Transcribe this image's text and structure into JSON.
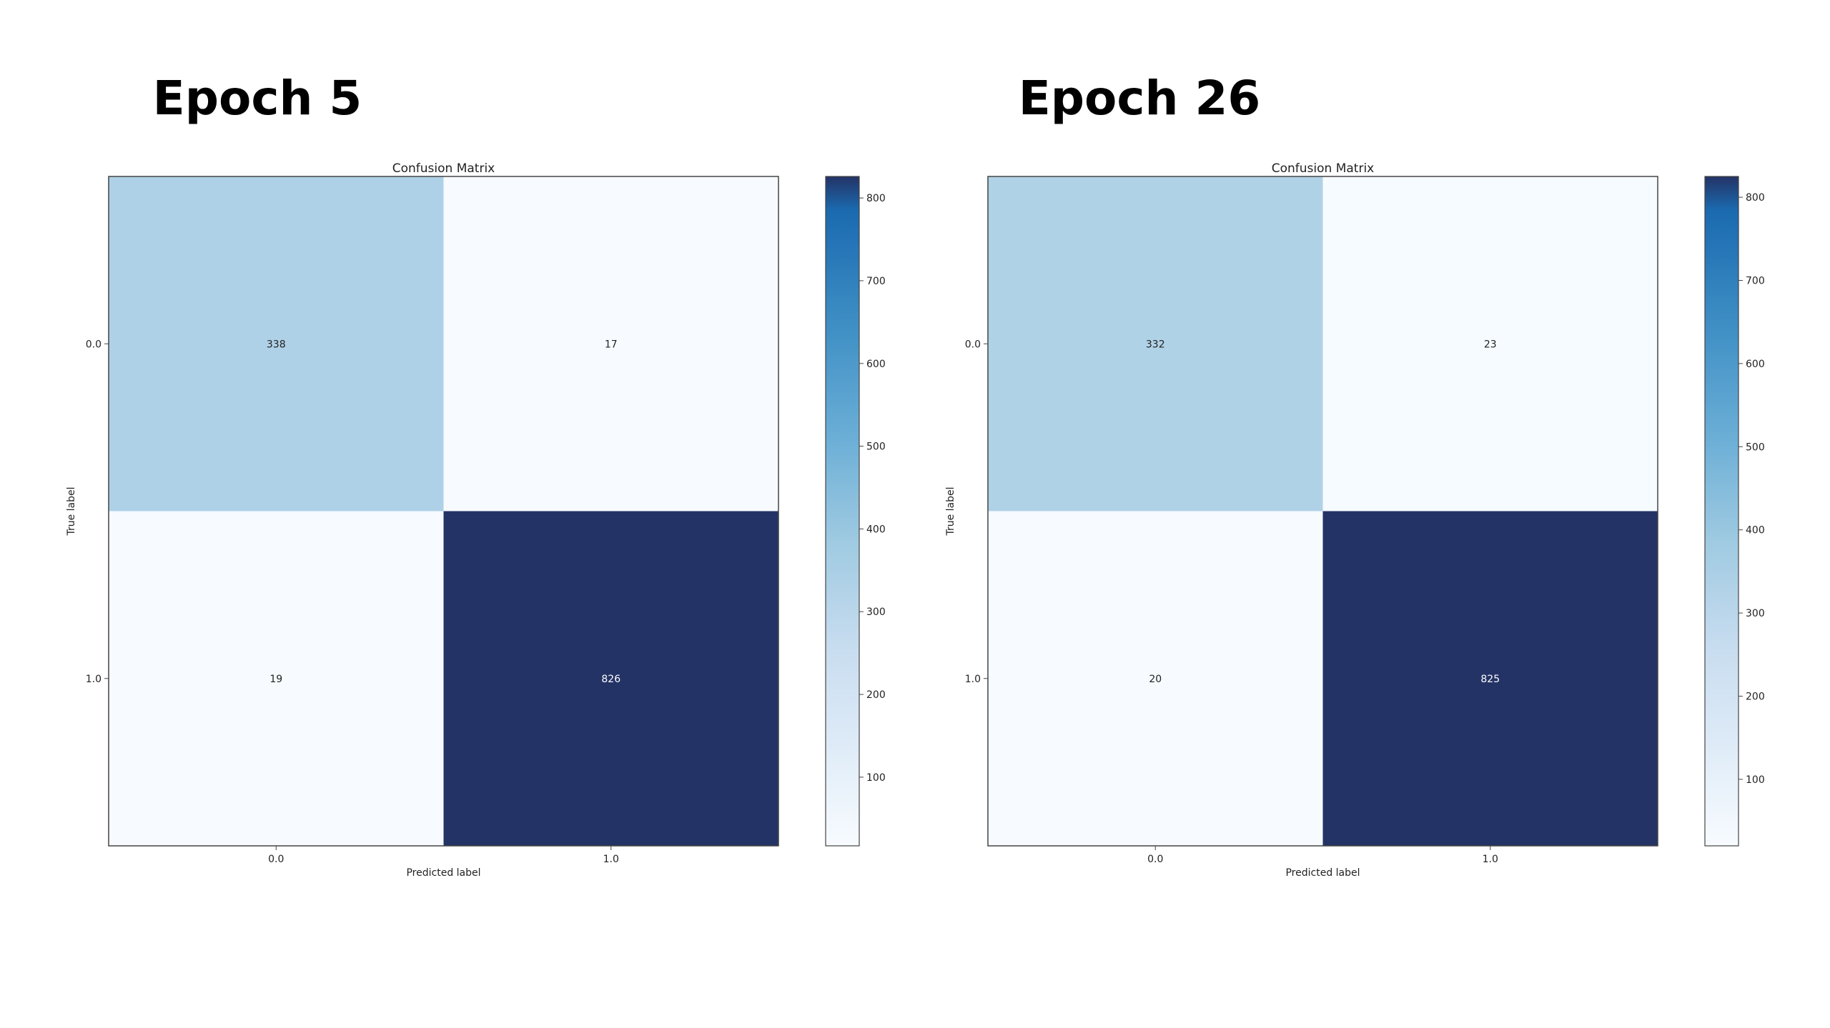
{
  "panels": [
    {
      "heading": "Epoch 5",
      "chart_data": {
        "type": "heatmap",
        "title": "Confusion Matrix",
        "xlabel": "Predicted label",
        "ylabel": "True label",
        "x_categories": [
          "0.0",
          "1.0"
        ],
        "y_categories": [
          "0.0",
          "1.0"
        ],
        "values": [
          [
            338,
            17
          ],
          [
            19,
            826
          ]
        ],
        "colormap": "Blues",
        "colorbar": {
          "ticks": [
            100,
            200,
            300,
            400,
            500,
            600,
            700,
            800
          ],
          "range": [
            17,
            826
          ]
        }
      }
    },
    {
      "heading": "Epoch 26",
      "chart_data": {
        "type": "heatmap",
        "title": "Confusion Matrix",
        "xlabel": "Predicted label",
        "ylabel": "True label",
        "x_categories": [
          "0.0",
          "1.0"
        ],
        "y_categories": [
          "0.0",
          "1.0"
        ],
        "values": [
          [
            332,
            23
          ],
          [
            20,
            825
          ]
        ],
        "colormap": "Blues",
        "colorbar": {
          "ticks": [
            100,
            200,
            300,
            400,
            500,
            600,
            700,
            800
          ],
          "range": [
            20,
            825
          ]
        }
      }
    }
  ],
  "chart_data": [
    {
      "type": "heatmap",
      "title": "Confusion Matrix",
      "xlabel": "Predicted label",
      "ylabel": "True label",
      "x_categories": [
        "0.0",
        "1.0"
      ],
      "y_categories": [
        "0.0",
        "1.0"
      ],
      "values": [
        [
          338,
          17
        ],
        [
          19,
          826
        ]
      ]
    },
    {
      "type": "heatmap",
      "title": "Confusion Matrix",
      "xlabel": "Predicted label",
      "ylabel": "True label",
      "x_categories": [
        "0.0",
        "1.0"
      ],
      "y_categories": [
        "0.0",
        "1.0"
      ],
      "values": [
        [
          332,
          23
        ],
        [
          20,
          825
        ]
      ]
    }
  ]
}
